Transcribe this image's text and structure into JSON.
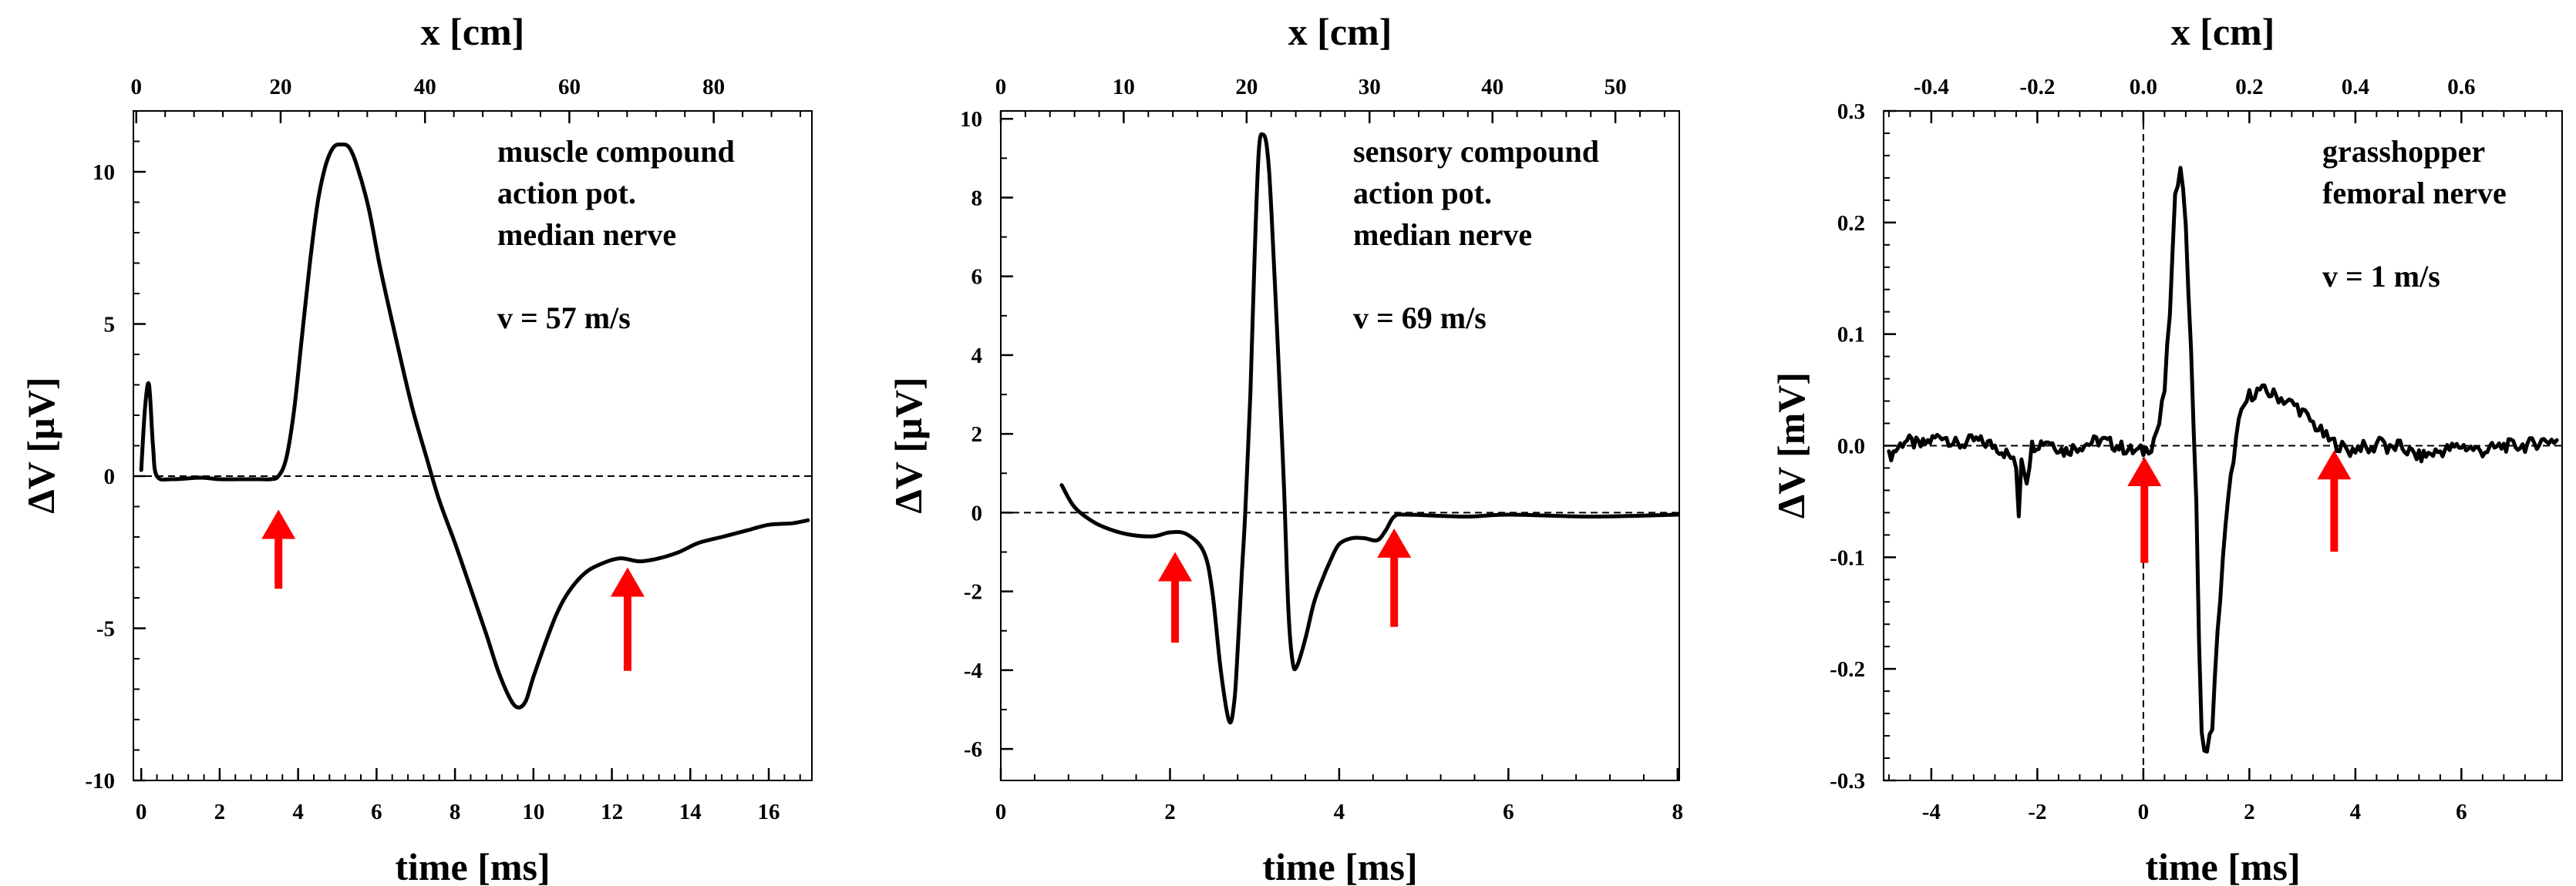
{
  "chart_data": [
    {
      "type": "line",
      "id": "p1",
      "title": "",
      "top_axis_label": "x [cm]",
      "xlabel": "time [ms]",
      "ylabel": "ΔV [µV]",
      "xlim": [
        -0.2,
        17.1
      ],
      "ylim": [
        -10,
        12
      ],
      "top_xlim": [
        -0.4,
        93.6
      ],
      "x_ticks": [
        0,
        2,
        4,
        6,
        8,
        10,
        12,
        14,
        16
      ],
      "x_tick_labels": [
        "0",
        "2",
        "4",
        "6",
        "8",
        "10",
        "12",
        "14",
        "16"
      ],
      "x_minor_step": 0.4,
      "y_ticks": [
        -10,
        -5,
        0,
        5,
        10
      ],
      "y_tick_labels": [
        "-10",
        "-5",
        "0",
        "5",
        "10"
      ],
      "y_minor_step": 1,
      "top_ticks": [
        0,
        20,
        40,
        60,
        80
      ],
      "top_tick_labels": [
        "0",
        "20",
        "40",
        "60",
        "80"
      ],
      "top_minor_step": 4,
      "hline": 0,
      "vline": null,
      "annotation_lines": [
        "muscle compound",
        "action pot.",
        "median nerve",
        "",
        "v = 57 m/s"
      ],
      "arrows": [
        {
          "x": 3.5,
          "from_y": -3.7,
          "to_y": -1.1
        },
        {
          "x": 12.4,
          "from_y": -6.4,
          "to_y": -3.0
        }
      ],
      "noise": 0,
      "series": [
        {
          "name": "muscle compound action potential",
          "points": [
            [
              0.0,
              0.2
            ],
            [
              0.1,
              2.3
            ],
            [
              0.2,
              3.0
            ],
            [
              0.3,
              1.0
            ],
            [
              0.4,
              0.0
            ],
            [
              0.8,
              -0.1
            ],
            [
              1.5,
              -0.05
            ],
            [
              2.0,
              -0.1
            ],
            [
              2.5,
              -0.1
            ],
            [
              3.0,
              -0.1
            ],
            [
              3.3,
              -0.1
            ],
            [
              3.5,
              0.0
            ],
            [
              3.7,
              0.6
            ],
            [
              3.9,
              2.2
            ],
            [
              4.1,
              4.6
            ],
            [
              4.3,
              7.0
            ],
            [
              4.5,
              9.0
            ],
            [
              4.7,
              10.2
            ],
            [
              4.9,
              10.8
            ],
            [
              5.1,
              10.9
            ],
            [
              5.3,
              10.8
            ],
            [
              5.5,
              10.2
            ],
            [
              5.8,
              8.8
            ],
            [
              6.1,
              6.8
            ],
            [
              6.5,
              4.5
            ],
            [
              6.9,
              2.3
            ],
            [
              7.3,
              0.5
            ],
            [
              7.6,
              -0.8
            ],
            [
              8.0,
              -2.2
            ],
            [
              8.4,
              -3.7
            ],
            [
              8.8,
              -5.2
            ],
            [
              9.1,
              -6.4
            ],
            [
              9.4,
              -7.3
            ],
            [
              9.6,
              -7.6
            ],
            [
              9.8,
              -7.4
            ],
            [
              10.0,
              -6.6
            ],
            [
              10.3,
              -5.5
            ],
            [
              10.6,
              -4.5
            ],
            [
              10.9,
              -3.8
            ],
            [
              11.3,
              -3.2
            ],
            [
              11.7,
              -2.9
            ],
            [
              12.2,
              -2.7
            ],
            [
              12.7,
              -2.8
            ],
            [
              13.2,
              -2.7
            ],
            [
              13.7,
              -2.5
            ],
            [
              14.2,
              -2.2
            ],
            [
              14.8,
              -2.0
            ],
            [
              15.4,
              -1.8
            ],
            [
              16.0,
              -1.6
            ],
            [
              16.6,
              -1.55
            ],
            [
              17.0,
              -1.45
            ]
          ]
        }
      ]
    },
    {
      "type": "line",
      "id": "p2",
      "title": "",
      "top_axis_label": "x [cm]",
      "xlabel": "time [ms]",
      "ylabel": "ΔV [µV]",
      "xlim": [
        0,
        8.02
      ],
      "ylim": [
        -6.8,
        10.2
      ],
      "top_xlim": [
        0,
        55.2
      ],
      "x_ticks": [
        0,
        2,
        4,
        6,
        8
      ],
      "x_tick_labels": [
        "0",
        "2",
        "4",
        "6",
        "8"
      ],
      "x_minor_step": 0.4,
      "y_ticks": [
        -6,
        -4,
        -2,
        0,
        2,
        4,
        6,
        8,
        10
      ],
      "y_tick_labels": [
        "-6",
        "-4",
        "-2",
        "0",
        "2",
        "4",
        "6",
        "8",
        "10"
      ],
      "y_minor_step": 1,
      "top_ticks": [
        0,
        10,
        20,
        30,
        40,
        50
      ],
      "top_tick_labels": [
        "0",
        "10",
        "20",
        "30",
        "40",
        "50"
      ],
      "top_minor_step": 2,
      "hline": 0,
      "vline": null,
      "annotation_lines": [
        "sensory compound",
        "action pot.",
        "median nerve",
        "",
        "v = 69 m/s"
      ],
      "arrows": [
        {
          "x": 2.06,
          "from_y": -3.3,
          "to_y": -1.0
        },
        {
          "x": 4.65,
          "from_y": -2.9,
          "to_y": -0.4
        }
      ],
      "noise": 0,
      "series": [
        {
          "name": "sensory compound action potential",
          "points": [
            [
              0.72,
              0.7
            ],
            [
              0.85,
              0.2
            ],
            [
              1.0,
              -0.1
            ],
            [
              1.2,
              -0.35
            ],
            [
              1.5,
              -0.55
            ],
            [
              1.8,
              -0.6
            ],
            [
              2.0,
              -0.5
            ],
            [
              2.2,
              -0.55
            ],
            [
              2.4,
              -1.0
            ],
            [
              2.5,
              -2.0
            ],
            [
              2.6,
              -4.0
            ],
            [
              2.7,
              -5.3
            ],
            [
              2.76,
              -4.8
            ],
            [
              2.8,
              -3.5
            ],
            [
              2.85,
              -1.5
            ],
            [
              2.88,
              -0.4
            ],
            [
              2.9,
              0.5
            ],
            [
              2.95,
              3.0
            ],
            [
              3.0,
              6.5
            ],
            [
              3.05,
              9.2
            ],
            [
              3.1,
              9.6
            ],
            [
              3.15,
              9.2
            ],
            [
              3.2,
              7.6
            ],
            [
              3.3,
              3.0
            ],
            [
              3.35,
              0.5
            ],
            [
              3.4,
              -2.5
            ],
            [
              3.45,
              -3.8
            ],
            [
              3.5,
              -3.9
            ],
            [
              3.6,
              -3.2
            ],
            [
              3.7,
              -2.3
            ],
            [
              3.8,
              -1.7
            ],
            [
              3.9,
              -1.2
            ],
            [
              4.0,
              -0.8
            ],
            [
              4.15,
              -0.65
            ],
            [
              4.3,
              -0.65
            ],
            [
              4.45,
              -0.7
            ],
            [
              4.55,
              -0.45
            ],
            [
              4.65,
              -0.1
            ],
            [
              4.8,
              -0.05
            ],
            [
              5.5,
              -0.1
            ],
            [
              6.0,
              -0.05
            ],
            [
              7.0,
              -0.1
            ],
            [
              8.0,
              -0.05
            ]
          ]
        }
      ]
    },
    {
      "type": "line",
      "id": "p3",
      "title": "",
      "top_axis_label": "x [cm]",
      "xlabel": "time [ms]",
      "ylabel": "ΔV [mV]",
      "xlim": [
        -4.9,
        7.9
      ],
      "ylim": [
        -0.3,
        0.3
      ],
      "top_xlim": [
        -0.49,
        0.79
      ],
      "x_ticks": [
        -4,
        -2,
        0,
        2,
        4,
        6
      ],
      "x_tick_labels": [
        "-4",
        "-2",
        "0",
        "2",
        "4",
        "6"
      ],
      "x_minor_step": 0.4,
      "y_ticks": [
        -0.3,
        -0.2,
        -0.1,
        0.0,
        0.1,
        0.2,
        0.3
      ],
      "y_tick_labels": [
        "-0.3",
        "-0.2",
        "-0.1",
        "0.0",
        "0.1",
        "0.2",
        "0.3"
      ],
      "y_minor_step": 0.02,
      "top_ticks": [
        -0.4,
        -0.2,
        0.0,
        0.2,
        0.4,
        0.6
      ],
      "top_tick_labels": [
        "-0.4",
        "-0.2",
        "0.0",
        "0.2",
        "0.4",
        "0.6"
      ],
      "top_minor_step": 0.04,
      "hline": 0,
      "vline": 0,
      "annotation_lines": [
        "grasshopper",
        "femoral nerve",
        "",
        "v = 1 m/s"
      ],
      "arrows": [
        {
          "x": 0.02,
          "from_y": -0.105,
          "to_y": -0.01
        },
        {
          "x": 3.6,
          "from_y": -0.095,
          "to_y": -0.004
        }
      ],
      "noise": 0.006,
      "series": [
        {
          "name": "grasshopper femoral nerve",
          "points": [
            [
              -4.8,
              -0.01
            ],
            [
              -4.5,
              0.005
            ],
            [
              -4.2,
              0.0
            ],
            [
              -3.8,
              0.01
            ],
            [
              -3.5,
              0.0
            ],
            [
              -3.2,
              0.005
            ],
            [
              -2.8,
              0.0
            ],
            [
              -2.5,
              -0.01
            ],
            [
              -2.4,
              -0.02
            ],
            [
              -2.35,
              -0.06
            ],
            [
              -2.3,
              -0.01
            ],
            [
              -2.2,
              -0.03
            ],
            [
              -2.1,
              0.0
            ],
            [
              -1.8,
              0.005
            ],
            [
              -1.5,
              -0.005
            ],
            [
              -1.2,
              0.0
            ],
            [
              -0.8,
              0.005
            ],
            [
              -0.5,
              0.0
            ],
            [
              -0.2,
              -0.005
            ],
            [
              0.0,
              -0.005
            ],
            [
              0.15,
              0.0
            ],
            [
              0.3,
              0.02
            ],
            [
              0.4,
              0.05
            ],
            [
              0.5,
              0.12
            ],
            [
              0.6,
              0.22
            ],
            [
              0.7,
              0.255
            ],
            [
              0.8,
              0.2
            ],
            [
              0.9,
              0.08
            ],
            [
              1.0,
              -0.05
            ],
            [
              1.05,
              -0.18
            ],
            [
              1.1,
              -0.26
            ],
            [
              1.2,
              -0.275
            ],
            [
              1.3,
              -0.25
            ],
            [
              1.4,
              -0.17
            ],
            [
              1.5,
              -0.1
            ],
            [
              1.6,
              -0.05
            ],
            [
              1.7,
              -0.01
            ],
            [
              1.8,
              0.02
            ],
            [
              1.9,
              0.035
            ],
            [
              2.0,
              0.045
            ],
            [
              2.2,
              0.05
            ],
            [
              2.5,
              0.045
            ],
            [
              2.7,
              0.04
            ],
            [
              2.9,
              0.035
            ],
            [
              3.1,
              0.025
            ],
            [
              3.3,
              0.015
            ],
            [
              3.5,
              0.005
            ],
            [
              3.7,
              0.0
            ],
            [
              3.9,
              -0.005
            ],
            [
              4.1,
              0.0
            ],
            [
              4.3,
              -0.005
            ],
            [
              4.5,
              0.01
            ],
            [
              4.6,
              -0.005
            ],
            [
              4.8,
              0.0
            ],
            [
              5.2,
              -0.01
            ],
            [
              5.6,
              -0.005
            ],
            [
              6.0,
              0.0
            ],
            [
              6.4,
              -0.005
            ],
            [
              6.8,
              0.0
            ],
            [
              7.2,
              0.0
            ],
            [
              7.6,
              0.005
            ],
            [
              7.8,
              0.005
            ]
          ]
        }
      ]
    }
  ]
}
